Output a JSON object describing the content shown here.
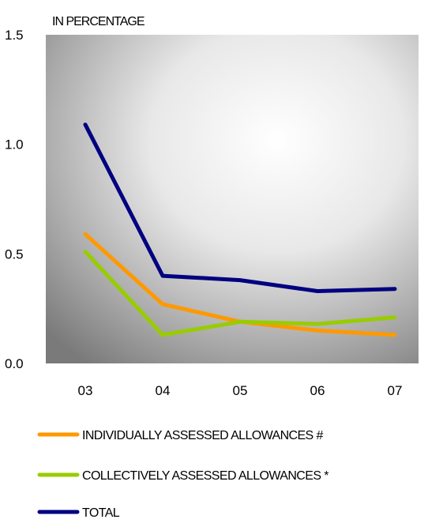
{
  "chart_data": {
    "type": "line",
    "subtitle": "IN PERCENTAGE",
    "categories": [
      "03",
      "04",
      "05",
      "06",
      "07"
    ],
    "ylim": [
      0,
      1.5
    ],
    "yticks": [
      "0.0",
      "0.5",
      "1.0",
      "1.5"
    ],
    "grid": false,
    "legend_position": "bottom",
    "plot_background": "radial gradient from white (upper-center) to grey at edges",
    "series": [
      {
        "name": "INDIVIDUALLY ASSESSED ALLOWANCES #",
        "color": "#ff9900",
        "values": [
          0.59,
          0.27,
          0.19,
          0.15,
          0.13
        ]
      },
      {
        "name": "COLLECTIVELY ASSESSED ALLOWANCES *",
        "color": "#99cc00",
        "values": [
          0.51,
          0.13,
          0.19,
          0.18,
          0.21
        ]
      },
      {
        "name": "TOTAL",
        "color": "#000080",
        "values": [
          1.09,
          0.4,
          0.38,
          0.33,
          0.34
        ]
      }
    ]
  }
}
